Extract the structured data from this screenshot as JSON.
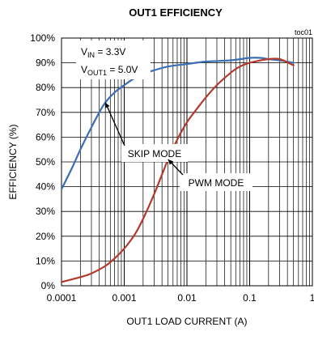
{
  "chart_data": {
    "type": "line",
    "title": "OUT1 EFFICIENCY",
    "corner_label": "toc01",
    "xlabel": "OUT1 LOAD CURRENT (A)",
    "ylabel": "EFFICIENCY (%)",
    "x_scale": "log",
    "xlim": [
      0.0001,
      1
    ],
    "ylim": [
      0,
      100
    ],
    "x_ticks": [
      {
        "value": 0.0001,
        "label": "0.0001"
      },
      {
        "value": 0.001,
        "label": "0.001"
      },
      {
        "value": 0.01,
        "label": "0.01"
      },
      {
        "value": 0.1,
        "label": "0.1"
      },
      {
        "value": 1,
        "label": "1"
      }
    ],
    "y_ticks": [
      {
        "value": 0,
        "label": "0%"
      },
      {
        "value": 10,
        "label": "10%"
      },
      {
        "value": 20,
        "label": "20%"
      },
      {
        "value": 30,
        "label": "30%"
      },
      {
        "value": 40,
        "label": "40%"
      },
      {
        "value": 50,
        "label": "50%"
      },
      {
        "value": 60,
        "label": "60%"
      },
      {
        "value": 70,
        "label": "70%"
      },
      {
        "value": 80,
        "label": "80%"
      },
      {
        "value": 90,
        "label": "90%"
      },
      {
        "value": 100,
        "label": "100%"
      }
    ],
    "grid": true,
    "conditions": [
      {
        "main": "V",
        "sub": "IN",
        "rest": " = 3.3V"
      },
      {
        "main": "V",
        "sub": "OUT1",
        "rest": " = 5.0V"
      }
    ],
    "series": [
      {
        "name": "SKIP MODE",
        "color": "#3a6fb5",
        "x": [
          0.0001,
          0.00015,
          0.0002,
          0.0003,
          0.0004,
          0.0005,
          0.0007,
          0.001,
          0.0015,
          0.002,
          0.003,
          0.005,
          0.01,
          0.02,
          0.05,
          0.1,
          0.15,
          0.2,
          0.3,
          0.5
        ],
        "values": [
          39,
          48,
          55,
          64,
          70,
          74,
          78,
          81,
          84,
          85.5,
          87,
          88.5,
          89.5,
          90.5,
          91,
          92,
          92,
          91.5,
          91,
          90
        ]
      },
      {
        "name": "PWM MODE",
        "color": "#b03a2e",
        "x": [
          0.0001,
          0.0002,
          0.0003,
          0.0005,
          0.0007,
          0.001,
          0.0015,
          0.002,
          0.003,
          0.005,
          0.007,
          0.01,
          0.015,
          0.02,
          0.03,
          0.05,
          0.07,
          0.1,
          0.15,
          0.2,
          0.3,
          0.5
        ],
        "values": [
          1.5,
          3.5,
          5,
          8,
          11,
          15,
          21,
          27,
          37,
          51,
          59,
          66,
          72,
          76,
          81,
          86,
          88.5,
          90,
          91,
          91.5,
          91.5,
          89
        ]
      }
    ],
    "annotations": [
      {
        "text": "SKIP MODE",
        "series": 0,
        "arrow_to": [
          0.0005,
          74
        ]
      },
      {
        "text": "PWM MODE",
        "series": 1,
        "arrow_to": [
          0.005,
          51
        ]
      }
    ]
  }
}
